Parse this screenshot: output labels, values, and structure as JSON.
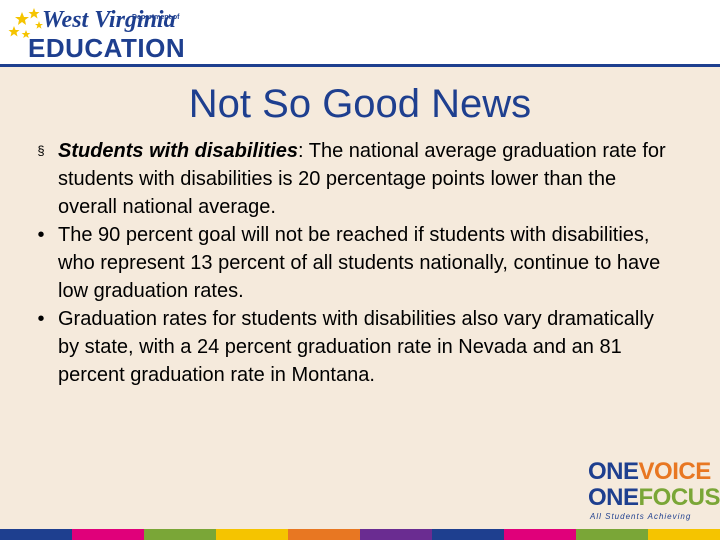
{
  "logo": {
    "state": "West Virginia",
    "dept_line1": "Department of",
    "edu": "EDUCATION",
    "star_color": "#f5c400"
  },
  "slide": {
    "title": "Not So Good News",
    "bullets": [
      {
        "marker": "§",
        "lead": "Students with disabilities",
        "text": ": The national average graduation rate for students with disabilities is 20 percentage points lower than the overall national average."
      },
      {
        "marker": "•",
        "lead": "",
        "text": "The 90 percent goal will not be reached if students with disabilities, who represent 13 percent of all students nationally, continue to have low graduation rates."
      },
      {
        "marker": "•",
        "lead": "",
        "text": "Graduation rates for students with disabilities also vary dramatically by state, with a 24 percent graduation rate in Nevada and an 81 percent graduation rate in Montana."
      }
    ]
  },
  "brand": {
    "one1": "ONE",
    "voice": "VOICE",
    "one2": "ONE",
    "focus": "FOCUS",
    "tagline": "All Students Achieving"
  },
  "colors": {
    "primary": "#1e3f8f",
    "background": "#f5eadc",
    "stripe": [
      "#1e3f8f",
      "#e0007a",
      "#7aa637",
      "#f5c400",
      "#e87722",
      "#6a2c91",
      "#1e3f8f",
      "#e0007a",
      "#7aa637",
      "#f5c400"
    ]
  }
}
